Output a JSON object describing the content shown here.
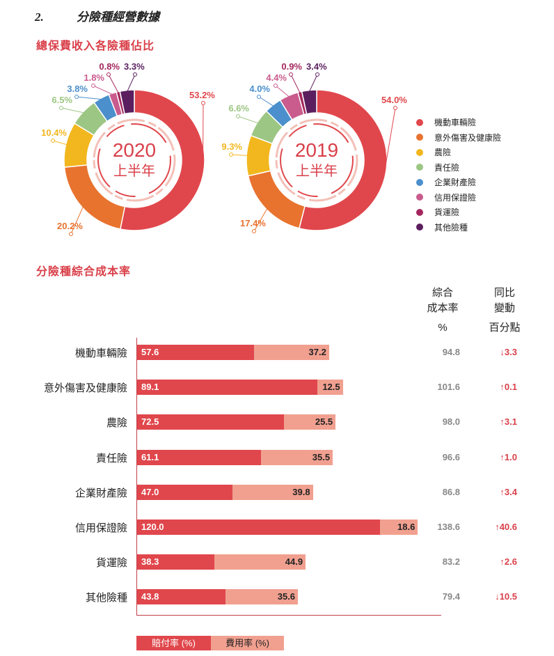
{
  "heading": {
    "number": "2.",
    "title": "分險種經營數據"
  },
  "section1_title": "總保費收入各險種佔比",
  "section2_title": "分險種綜合成本率",
  "colors": {
    "red": "#e0474c",
    "orange": "#e8732f",
    "yellow": "#f2b71e",
    "green": "#9cc683",
    "blue": "#4b8fcc",
    "pink": "#c95b8d",
    "magenta": "#a3275d",
    "purple": "#5b1f5f",
    "claims": "#e0474c",
    "expense": "#f1a090"
  },
  "chart_data": [
    {
      "type": "pie",
      "title": "2020",
      "subtitle": "上半年",
      "categories": [
        "機動車輛險",
        "意外傷害及健康險",
        "農險",
        "責任險",
        "企業財產險",
        "信用保證險",
        "貨運險",
        "其他險種"
      ],
      "values": [
        53.2,
        20.2,
        10.4,
        6.5,
        3.8,
        1.8,
        0.8,
        3.3
      ],
      "labels": [
        "53.2%",
        "20.2%",
        "10.4%",
        "6.5%",
        "3.8%",
        "1.8%",
        "0.8%",
        "3.3%"
      ]
    },
    {
      "type": "pie",
      "title": "2019",
      "subtitle": "上半年",
      "categories": [
        "機動車輛險",
        "意外傷害及健康險",
        "農險",
        "責任險",
        "企業財產險",
        "信用保證險",
        "貨運險",
        "其他險種"
      ],
      "values": [
        54.0,
        17.4,
        9.3,
        6.6,
        4.0,
        4.4,
        0.9,
        3.4
      ],
      "labels": [
        "54.0%",
        "17.4%",
        "9.3%",
        "6.6%",
        "4.0%",
        "4.4%",
        "0.9%",
        "3.4%"
      ]
    },
    {
      "type": "bar",
      "stacked": true,
      "orientation": "horizontal",
      "categories": [
        "機動車輛險",
        "意外傷害及健康險",
        "農險",
        "責任險",
        "企業財產險",
        "信用保證險",
        "貨運險",
        "其他險種"
      ],
      "series": [
        {
          "name": "賠付率 (%)",
          "values": [
            "57.6",
            "89.1",
            "72.5",
            "61.1",
            "47.0",
            "120.0",
            "38.3",
            "43.8"
          ]
        },
        {
          "name": "費用率 (%)",
          "values": [
            "37.2",
            "12.5",
            "25.5",
            "35.5",
            "39.8",
            "18.6",
            "44.9",
            "35.6"
          ]
        }
      ],
      "combined_header": [
        "綜合",
        "成本率",
        "%"
      ],
      "change_header": [
        "同比",
        "變動",
        "百分點"
      ],
      "combined": [
        "94.8",
        "101.6",
        "98.0",
        "96.6",
        "86.8",
        "138.6",
        "83.2",
        "79.4"
      ],
      "change": [
        "↓3.3",
        "↑0.1",
        "↑3.1",
        "↑1.0",
        "↑3.4",
        "↑40.6",
        "↑2.6",
        "↓10.5"
      ]
    }
  ]
}
